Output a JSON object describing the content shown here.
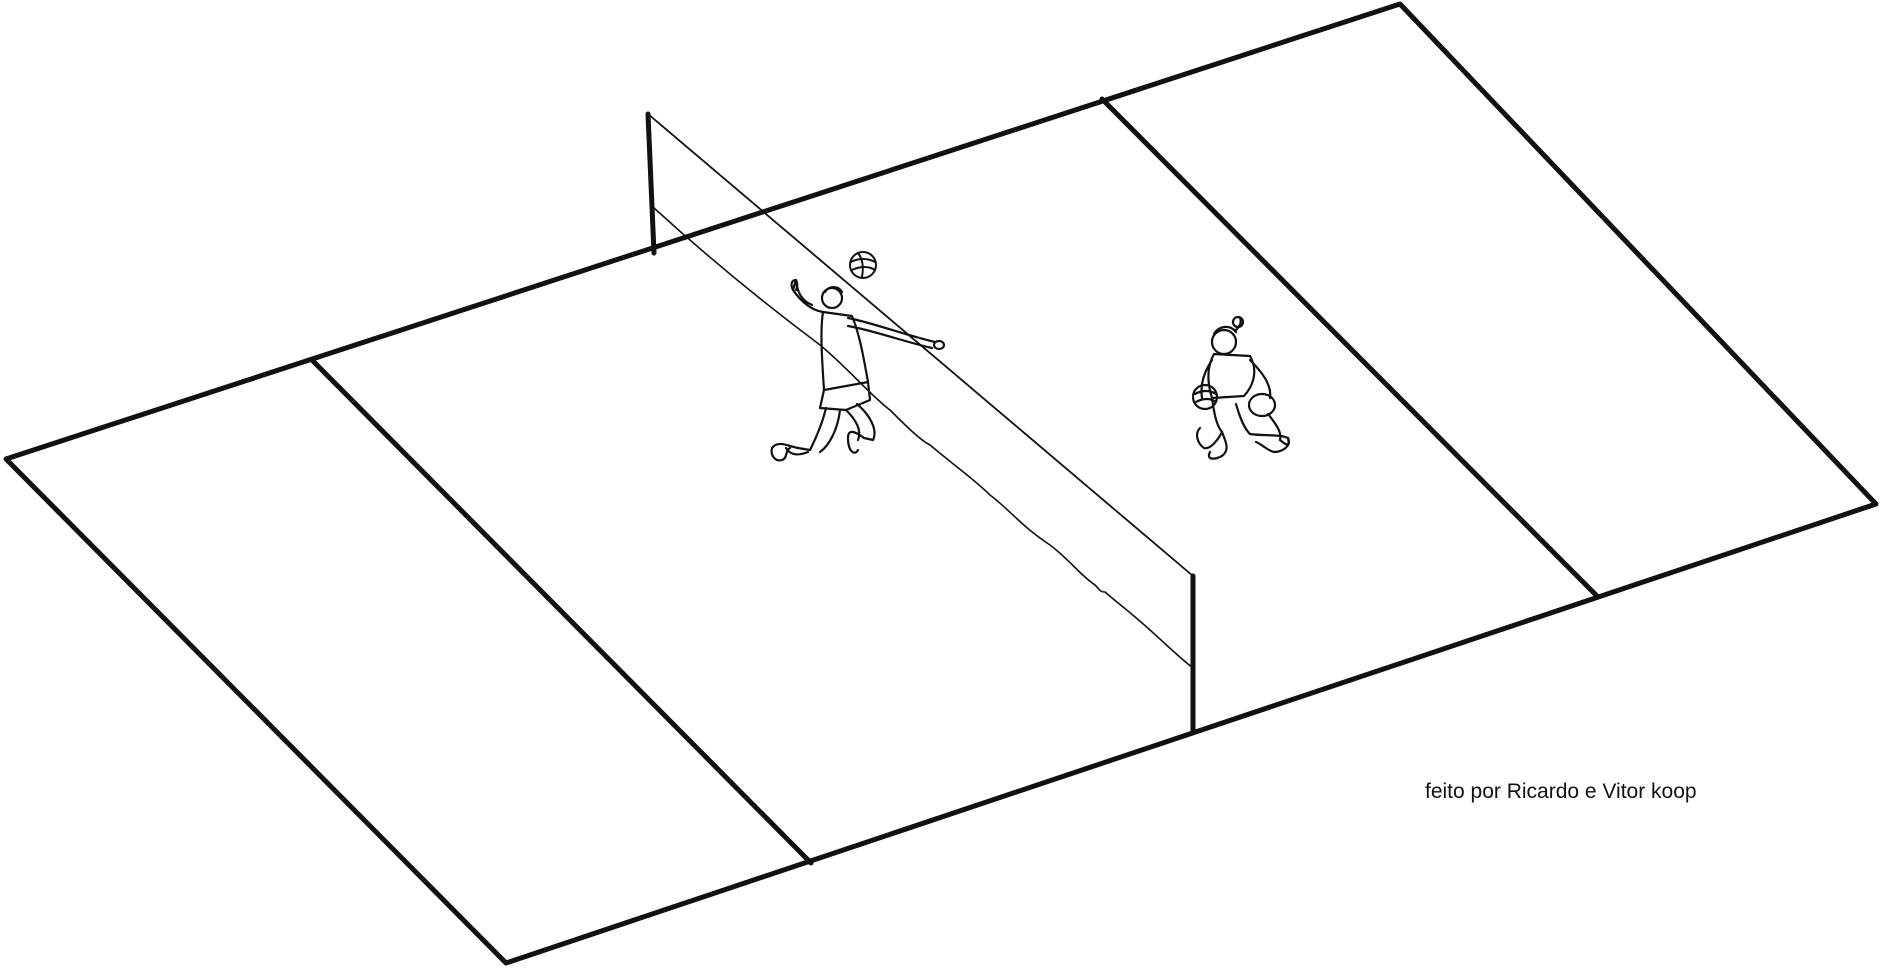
{
  "credit": "feito por Ricardo e Vitor koop",
  "colors": {
    "line": "#111111",
    "background": "#ffffff"
  }
}
